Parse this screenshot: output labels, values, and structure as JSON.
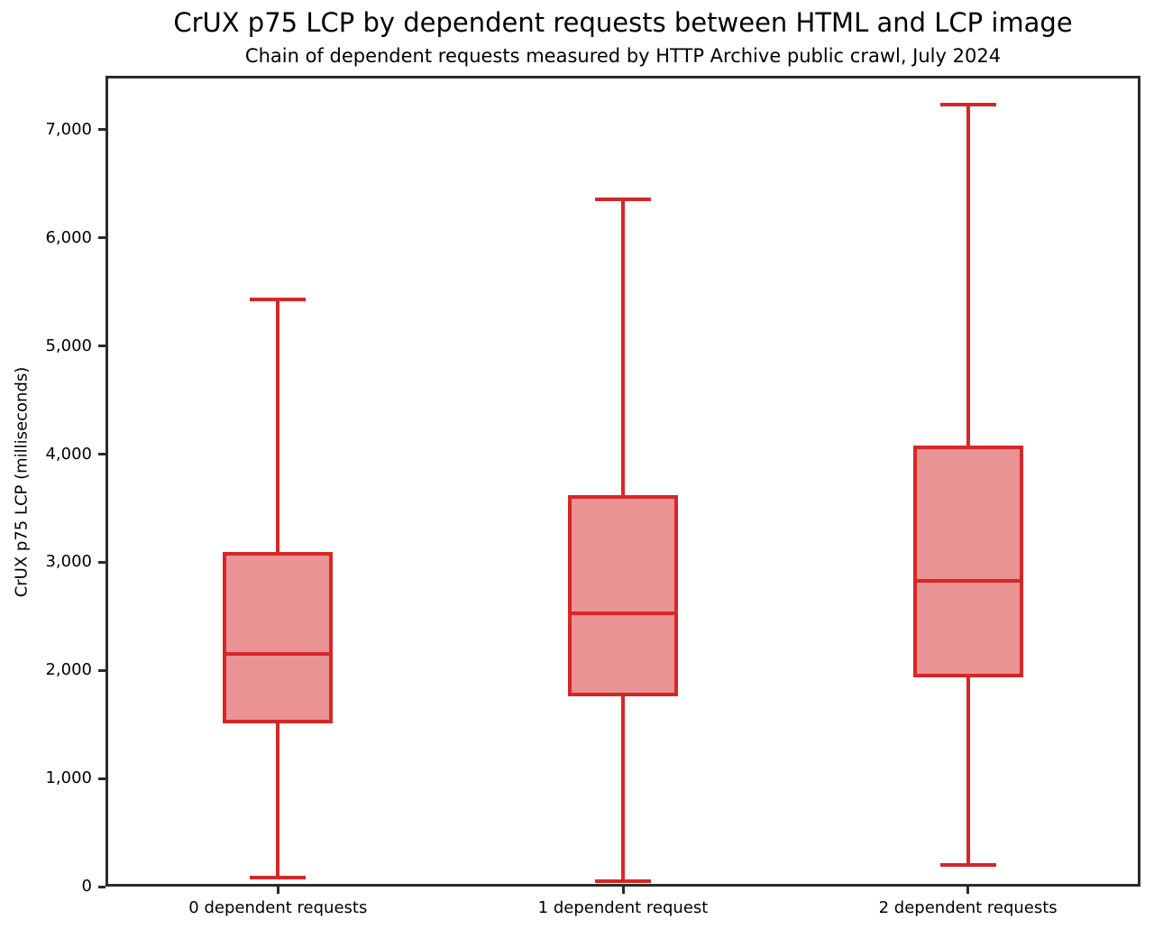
{
  "chart_data": {
    "type": "boxplot",
    "title": "CrUX p75 LCP by dependent requests between HTML and LCP image",
    "subtitle": "Chain of dependent requests measured by HTTP Archive public crawl, July 2024",
    "ylabel": "CrUX p75 LCP (milliseconds)",
    "xlabel": "",
    "ylim": [
      0,
      7500
    ],
    "yticks": [
      0,
      1000,
      2000,
      3000,
      4000,
      5000,
      6000,
      7000
    ],
    "ytick_labels": [
      "0",
      "1,000",
      "2,000",
      "3,000",
      "4,000",
      "5,000",
      "6,000",
      "7,000"
    ],
    "categories": [
      "0 dependent requests",
      "1 dependent request",
      "2 dependent requests"
    ],
    "series": [
      {
        "name": "0 dependent requests",
        "whisker_low": 80,
        "q1": 1530,
        "median": 2150,
        "q3": 3080,
        "whisker_high": 5430
      },
      {
        "name": "1 dependent request",
        "whisker_low": 50,
        "q1": 1780,
        "median": 2530,
        "q3": 3600,
        "whisker_high": 6360
      },
      {
        "name": "2 dependent requests",
        "whisker_low": 200,
        "q1": 1950,
        "median": 2830,
        "q3": 4060,
        "whisker_high": 7230
      }
    ],
    "grid": false,
    "legend": false,
    "colors": {
      "box_edge": "#d62728",
      "box_fill": "#ea9394",
      "axis": "#2b2b2b",
      "text": "#000000"
    }
  }
}
